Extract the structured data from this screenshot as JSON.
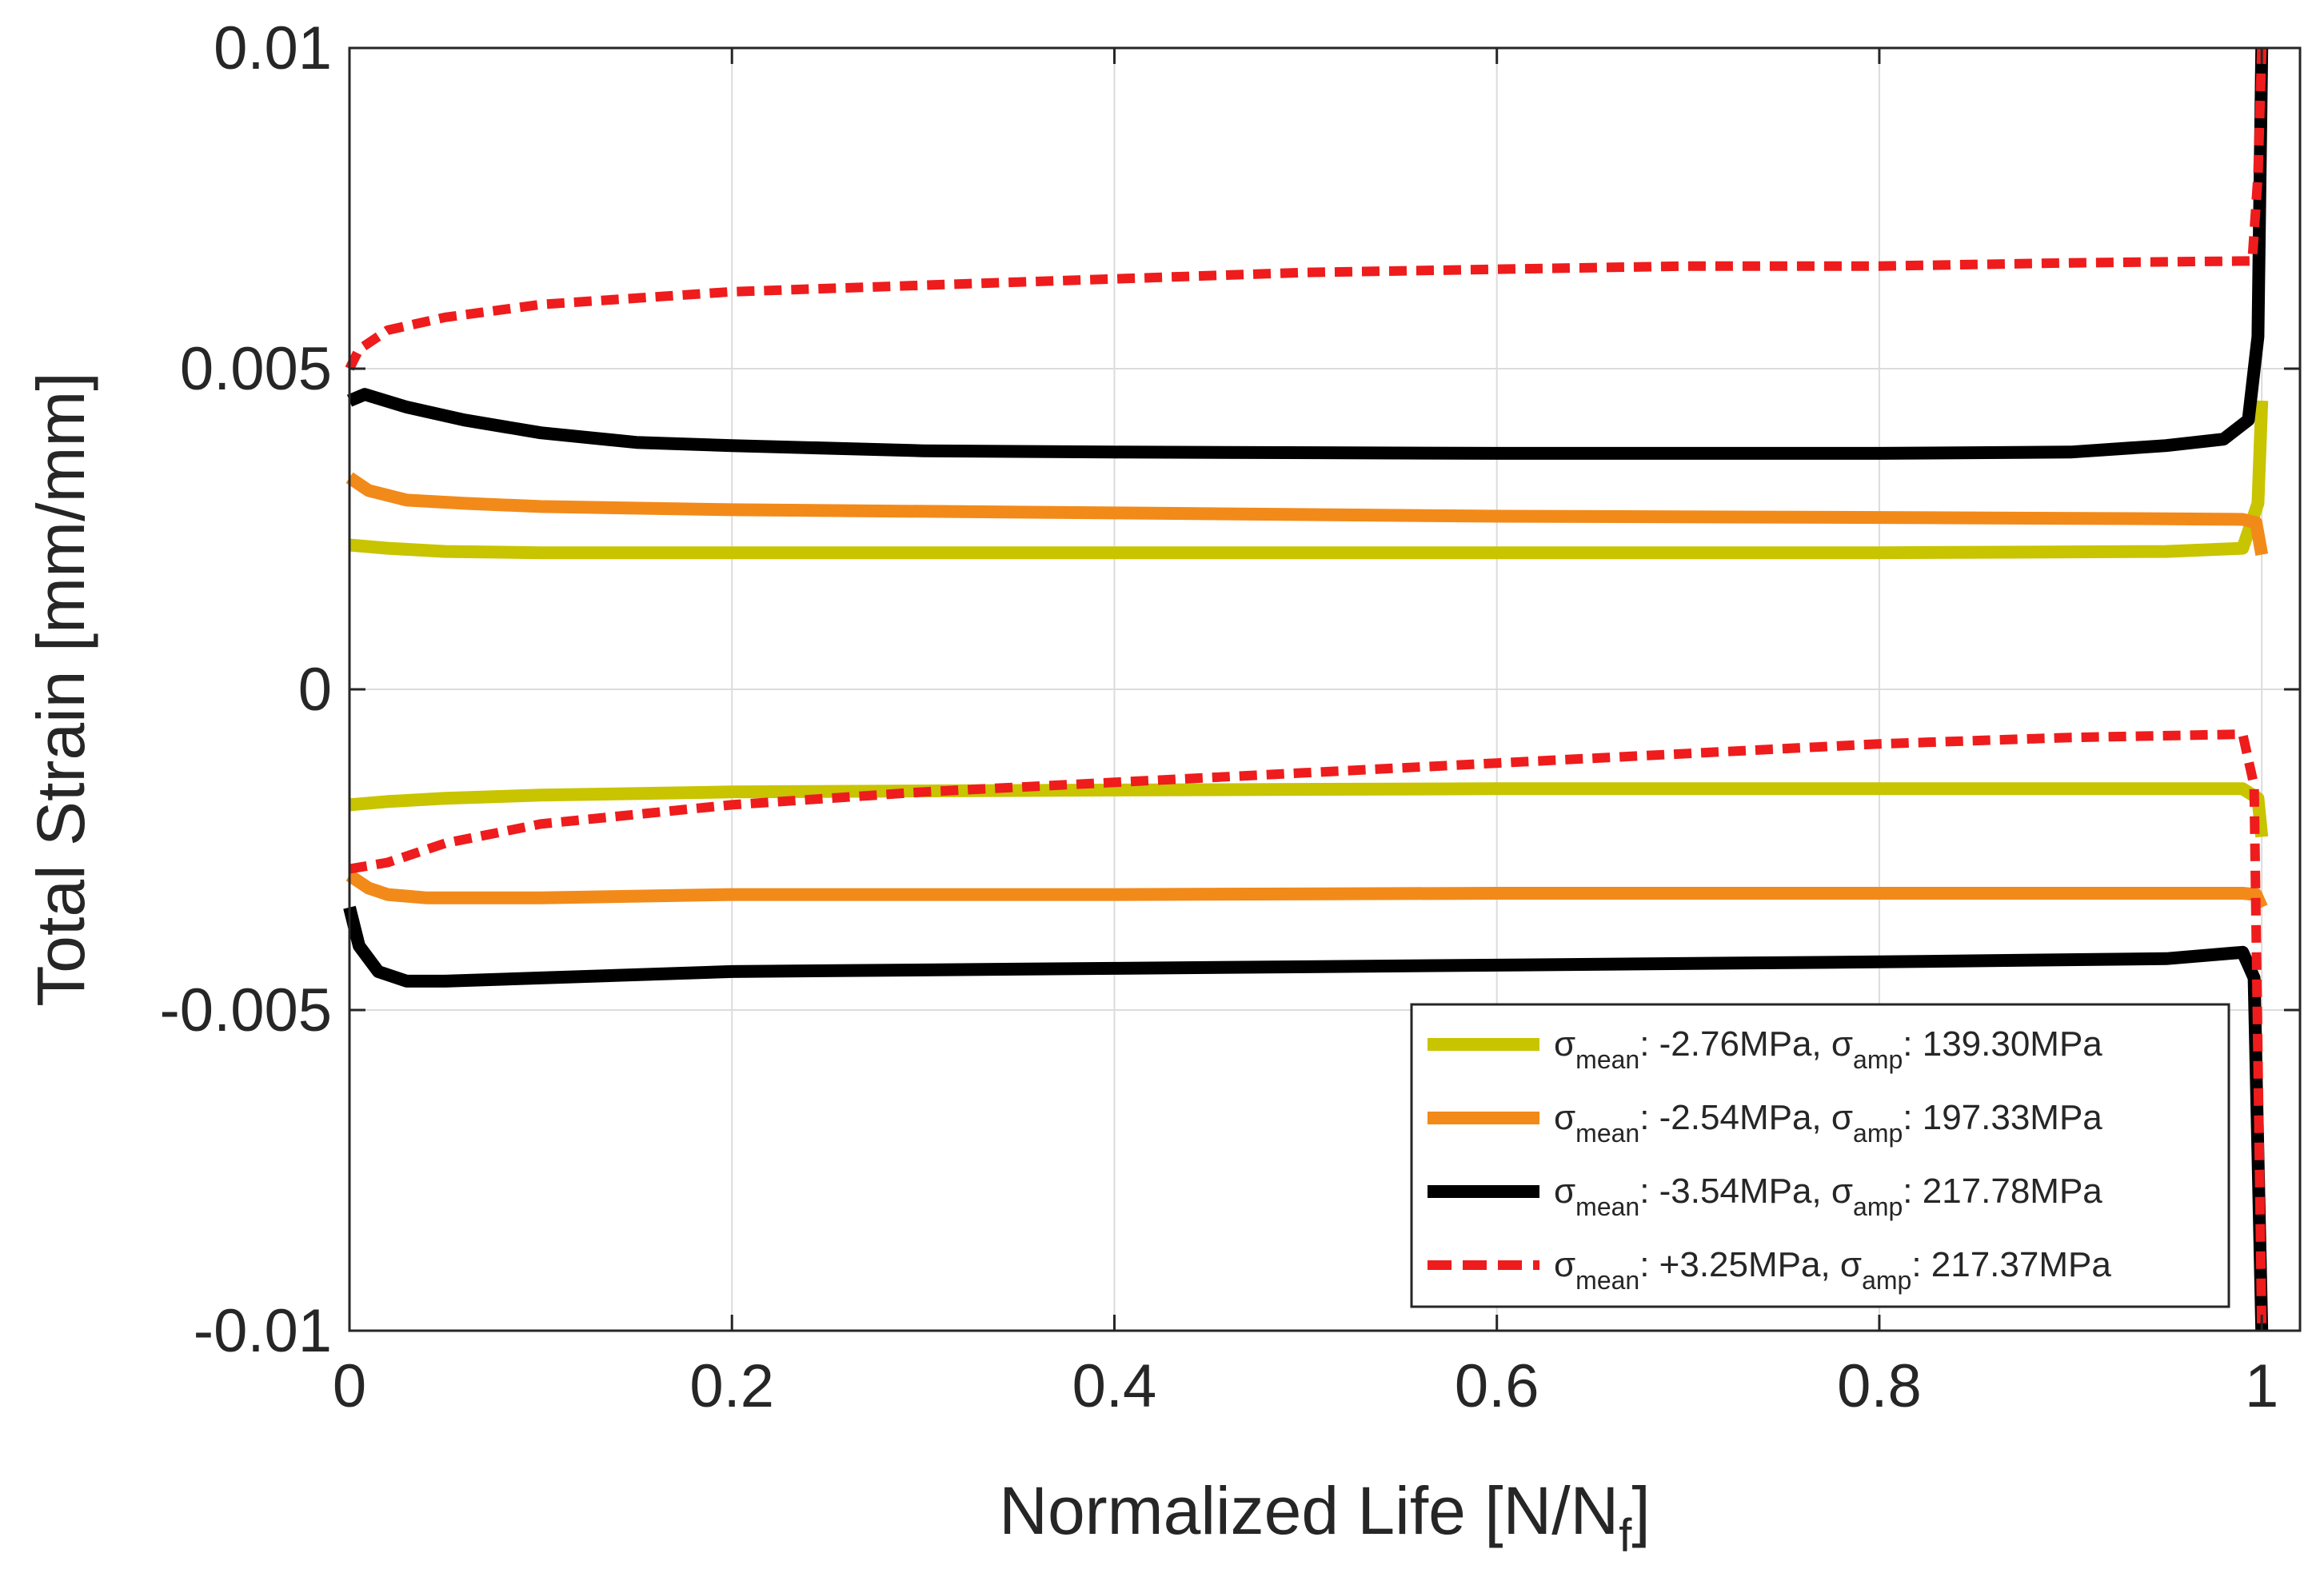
{
  "chart_data": {
    "type": "line",
    "title": "",
    "xlabel": {
      "base": "Normalized Life [N/N",
      "sub": "f",
      "close": "]"
    },
    "ylabel": "Total Strain [mm/mm]",
    "xlim": [
      0,
      1.02
    ],
    "ylim": [
      -0.01,
      0.01
    ],
    "xticks": [
      0,
      0.2,
      0.4,
      0.6,
      0.8,
      1
    ],
    "xtick_labels": [
      "0",
      "0.2",
      "0.4",
      "0.6",
      "0.8",
      "1"
    ],
    "yticks": [
      -0.01,
      -0.005,
      0,
      0.005,
      0.01
    ],
    "ytick_labels": [
      "-0.01",
      "-0.005",
      "0",
      "0.005",
      "0.01"
    ],
    "grid": true,
    "legend_position": "bottom-right",
    "series": [
      {
        "name": "σmean: -2.76MPa, σamp: 139.30MPa",
        "legend": {
          "mean_sym": "σ",
          "mean_sub": "mean",
          "mean_val": ": -2.76MPa, ",
          "amp_sym": "σ",
          "amp_sub": "amp",
          "amp_val": ": 139.30MPa"
        },
        "color": "#c8c400",
        "dashed": false,
        "max": {
          "x": [
            0,
            0.02,
            0.05,
            0.1,
            0.2,
            0.4,
            0.6,
            0.8,
            0.95,
            0.99,
            0.998,
            1.0
          ],
          "y": [
            0.00225,
            0.0022,
            0.00215,
            0.00213,
            0.00213,
            0.00213,
            0.00213,
            0.00213,
            0.00215,
            0.0022,
            0.0029,
            0.0045
          ]
        },
        "min": {
          "x": [
            0,
            0.02,
            0.05,
            0.1,
            0.2,
            0.4,
            0.6,
            0.8,
            0.95,
            0.99,
            0.998,
            1.0
          ],
          "y": [
            -0.0018,
            -0.00175,
            -0.0017,
            -0.00165,
            -0.0016,
            -0.00157,
            -0.00155,
            -0.00155,
            -0.00155,
            -0.00155,
            -0.0017,
            -0.0023
          ]
        }
      },
      {
        "name": "σmean: -2.54MPa, σamp: 197.33MPa",
        "legend": {
          "mean_sym": "σ",
          "mean_sub": "mean",
          "mean_val": ": -2.54MPa, ",
          "amp_sym": "σ",
          "amp_sub": "amp",
          "amp_val": ": 197.33MPa"
        },
        "color": "#f28a1a",
        "dashed": false,
        "max": {
          "x": [
            0,
            0.01,
            0.03,
            0.06,
            0.1,
            0.2,
            0.4,
            0.6,
            0.8,
            0.95,
            0.99,
            0.997,
            1.0
          ],
          "y": [
            0.0033,
            0.0031,
            0.00295,
            0.0029,
            0.00285,
            0.0028,
            0.00275,
            0.0027,
            0.00268,
            0.00266,
            0.00265,
            0.0026,
            0.0021
          ]
        },
        "min": {
          "x": [
            0,
            0.01,
            0.02,
            0.04,
            0.1,
            0.2,
            0.4,
            0.6,
            0.8,
            0.95,
            0.99,
            0.997,
            1.0
          ],
          "y": [
            -0.0029,
            -0.0031,
            -0.0032,
            -0.00325,
            -0.00325,
            -0.0032,
            -0.0032,
            -0.00318,
            -0.00318,
            -0.00318,
            -0.00318,
            -0.0032,
            -0.0034
          ]
        }
      },
      {
        "name": "σmean: -3.54MPa, σamp: 217.78MPa",
        "legend": {
          "mean_sym": "σ",
          "mean_sub": "mean",
          "mean_val": ": -3.54MPa, ",
          "amp_sym": "σ",
          "amp_sub": "amp",
          "amp_val": ": 217.78MPa"
        },
        "color": "#000000",
        "dashed": false,
        "max": {
          "x": [
            0,
            0.008,
            0.03,
            0.06,
            0.1,
            0.15,
            0.2,
            0.3,
            0.4,
            0.6,
            0.8,
            0.9,
            0.95,
            0.98,
            0.993,
            0.998,
            1.0
          ],
          "y": [
            0.0045,
            0.0046,
            0.0044,
            0.0042,
            0.004,
            0.00385,
            0.0038,
            0.00372,
            0.0037,
            0.00368,
            0.00368,
            0.0037,
            0.0038,
            0.0039,
            0.0042,
            0.0055,
            0.01
          ]
        },
        "min": {
          "x": [
            0,
            0.005,
            0.015,
            0.03,
            0.05,
            0.1,
            0.2,
            0.4,
            0.6,
            0.8,
            0.95,
            0.99,
            0.996,
            1.0
          ],
          "y": [
            -0.0034,
            -0.004,
            -0.0044,
            -0.00455,
            -0.00455,
            -0.0045,
            -0.0044,
            -0.00435,
            -0.0043,
            -0.00425,
            -0.0042,
            -0.0041,
            -0.0045,
            -0.01
          ]
        }
      },
      {
        "name": "σmean: +3.25MPa, σamp: 217.37MPa",
        "legend": {
          "mean_sym": "σ",
          "mean_sub": "mean",
          "mean_val": ": +3.25MPa, ",
          "amp_sym": "σ",
          "amp_sub": "amp",
          "amp_val": ": 217.37MPa"
        },
        "color": "#ee1c1c",
        "dashed": true,
        "max": {
          "x": [
            0,
            0.005,
            0.02,
            0.05,
            0.1,
            0.2,
            0.3,
            0.4,
            0.5,
            0.6,
            0.7,
            0.8,
            0.9,
            0.995,
            0.998,
            1.0
          ],
          "y": [
            0.005,
            0.0053,
            0.0056,
            0.0058,
            0.006,
            0.0062,
            0.0063,
            0.0064,
            0.0065,
            0.00655,
            0.0066,
            0.0066,
            0.00665,
            0.00668,
            0.008,
            0.01
          ]
        },
        "min": {
          "x": [
            0,
            0.02,
            0.05,
            0.1,
            0.2,
            0.3,
            0.4,
            0.5,
            0.6,
            0.7,
            0.8,
            0.9,
            0.99,
            0.996,
            1.0
          ],
          "y": [
            -0.0028,
            -0.0027,
            -0.0024,
            -0.0021,
            -0.0018,
            -0.0016,
            -0.00145,
            -0.0013,
            -0.00115,
            -0.001,
            -0.00085,
            -0.00075,
            -0.0007,
            -0.0015,
            -0.01
          ]
        }
      }
    ]
  }
}
